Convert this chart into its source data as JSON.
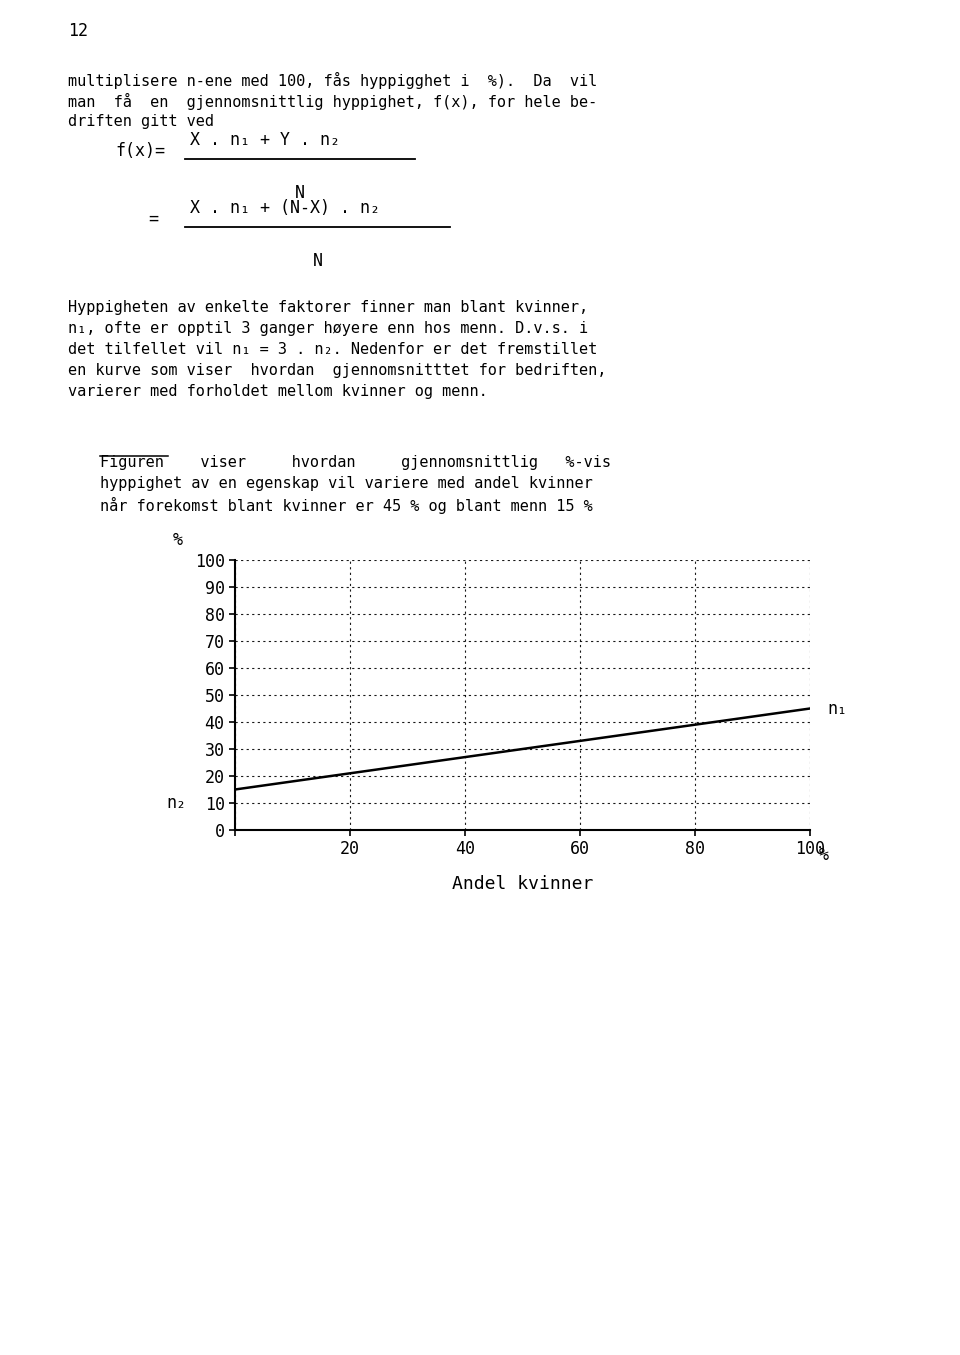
{
  "page_number": "12",
  "para1_lines": [
    "multiplisere n-ene med 100, fås hyppigghet i  %).  Da  vil",
    "man  få  en  gjennomsnittlig hyppighet, f(x), for hele be-",
    "driften gitt ved"
  ],
  "formula1_lhs": "f(x)=",
  "formula1_num": "X . n₁ + Y . n₂",
  "formula1_den": "N",
  "formula2_lhs": "=",
  "formula2_num": "X . n₁ + (N-X) . n₂",
  "formula2_den": "N",
  "para2_lines": [
    "Hyppigheten av enkelte faktorer finner man blant kvinner,",
    "n₁, ofte er opptil 3 ganger høyere enn hos menn. D.v.s. i",
    "det tilfellet vil n₁ = 3 . n₂. Nedenfor er det fremstillet",
    "en kurve som viser  hvordan  gjennomsnitttet for bedriften,",
    "varierer med forholdet mellom kvinner og menn."
  ],
  "para3_lines": [
    "Figuren    viser     hvordan     gjennomsnittlig   %-vis",
    "hyppighet av en egenskap vil variere med andel kvinner",
    "når forekomst blant kvinner er 45 % og blant menn 15 %"
  ],
  "chart": {
    "x_data": [
      0,
      100
    ],
    "y_data": [
      15,
      45
    ],
    "x_label": "Andel kvinner",
    "n1_label": "n₁",
    "n2_label": "n₂",
    "n2_y_pos": 10,
    "xlim": [
      0,
      100
    ],
    "ylim": [
      0,
      100
    ],
    "yticks": [
      0,
      10,
      20,
      30,
      40,
      50,
      60,
      70,
      80,
      90,
      100
    ],
    "xticks": [
      0,
      20,
      40,
      60,
      80,
      100
    ],
    "line_color": "#000000",
    "background_color": "#ffffff"
  }
}
